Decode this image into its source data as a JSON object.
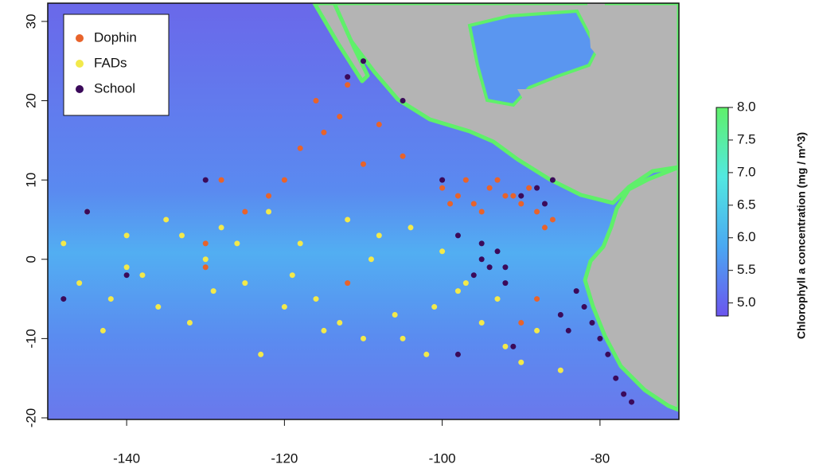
{
  "chart_data": {
    "type": "scatter",
    "xlim": [
      -150,
      -70
    ],
    "ylim": [
      -20.2,
      32.3
    ],
    "xticks": [
      -140,
      -120,
      -100,
      -80
    ],
    "yticks": [
      -20,
      -10,
      0,
      10,
      20,
      30
    ],
    "legend": "upper left",
    "series": [
      {
        "name": "Dophin",
        "color": "#e8632b",
        "x": [
          -112,
          -113,
          -115,
          -116,
          -118,
          -110,
          -108,
          -105,
          -120,
          -122,
          -125,
          -128,
          -130,
          -100,
          -98,
          -96,
          -94,
          -92,
          -90,
          -88,
          -86,
          -97,
          -95,
          -93,
          -91,
          -89,
          -99,
          -87,
          -112,
          -130,
          -88,
          -90
        ],
        "y": [
          22,
          18,
          16,
          20,
          14,
          12,
          17,
          13,
          10,
          8,
          6,
          10,
          2,
          9,
          8,
          7,
          9,
          8,
          7,
          6,
          5,
          10,
          6,
          10,
          8,
          9,
          7,
          4,
          -3,
          -1,
          -5,
          -8
        ]
      },
      {
        "name": "FADs",
        "color": "#f2e94b",
        "x": [
          -148,
          -145,
          -142,
          -140,
          -138,
          -135,
          -132,
          -130,
          -128,
          -125,
          -122,
          -120,
          -118,
          -115,
          -112,
          -110,
          -108,
          -106,
          -104,
          -102,
          -100,
          -98,
          -95,
          -92,
          -90,
          -146,
          -143,
          -140,
          -136,
          -133,
          -129,
          -126,
          -123,
          -119,
          -116,
          -113,
          -109,
          -105,
          -101,
          -97,
          -93,
          -88,
          -85
        ],
        "y": [
          2,
          6,
          -5,
          3,
          -2,
          5,
          -8,
          0,
          4,
          -3,
          6,
          -6,
          2,
          -9,
          5,
          -10,
          3,
          -7,
          4,
          -12,
          1,
          -4,
          -8,
          -11,
          -13,
          -3,
          -9,
          -1,
          -6,
          3,
          -4,
          2,
          -12,
          -2,
          -5,
          -8,
          0,
          -10,
          -6,
          -3,
          -5,
          -9,
          -14
        ]
      },
      {
        "name": "School",
        "color": "#3b0a5a",
        "x": [
          -95,
          -94,
          -93,
          -96,
          -92,
          -95,
          -82,
          -81,
          -80,
          -79,
          -78,
          -83,
          -77,
          -76,
          -88,
          -90,
          -87,
          -110,
          -112,
          -105,
          -100,
          -98,
          -140,
          -145,
          -148,
          -130,
          -98,
          -91,
          -85,
          -84,
          -92,
          -86
        ],
        "y": [
          0,
          -1,
          1,
          -2,
          -1,
          2,
          -6,
          -8,
          -10,
          -12,
          -15,
          -4,
          -17,
          -18,
          9,
          8,
          7,
          25,
          23,
          20,
          10,
          3,
          -2,
          6,
          -5,
          10,
          -12,
          -11,
          -7,
          -9,
          -3,
          10
        ]
      }
    ],
    "colorbar": {
      "label": "Chlorophyll a concentration (mg / m^3)",
      "lim": [
        4.8,
        8.0
      ],
      "colors": [
        "#6b55ee",
        "#4aa8f2",
        "#52e8e0",
        "#5ff06a"
      ],
      "ticks": [
        {
          "value": 5,
          "label": "5.0"
        },
        5.5,
        {
          "value": 6,
          "label": "6.0"
        },
        6.5,
        {
          "value": 7,
          "label": "7.0"
        },
        7.5,
        {
          "value": 8,
          "label": "8.0"
        }
      ]
    }
  }
}
